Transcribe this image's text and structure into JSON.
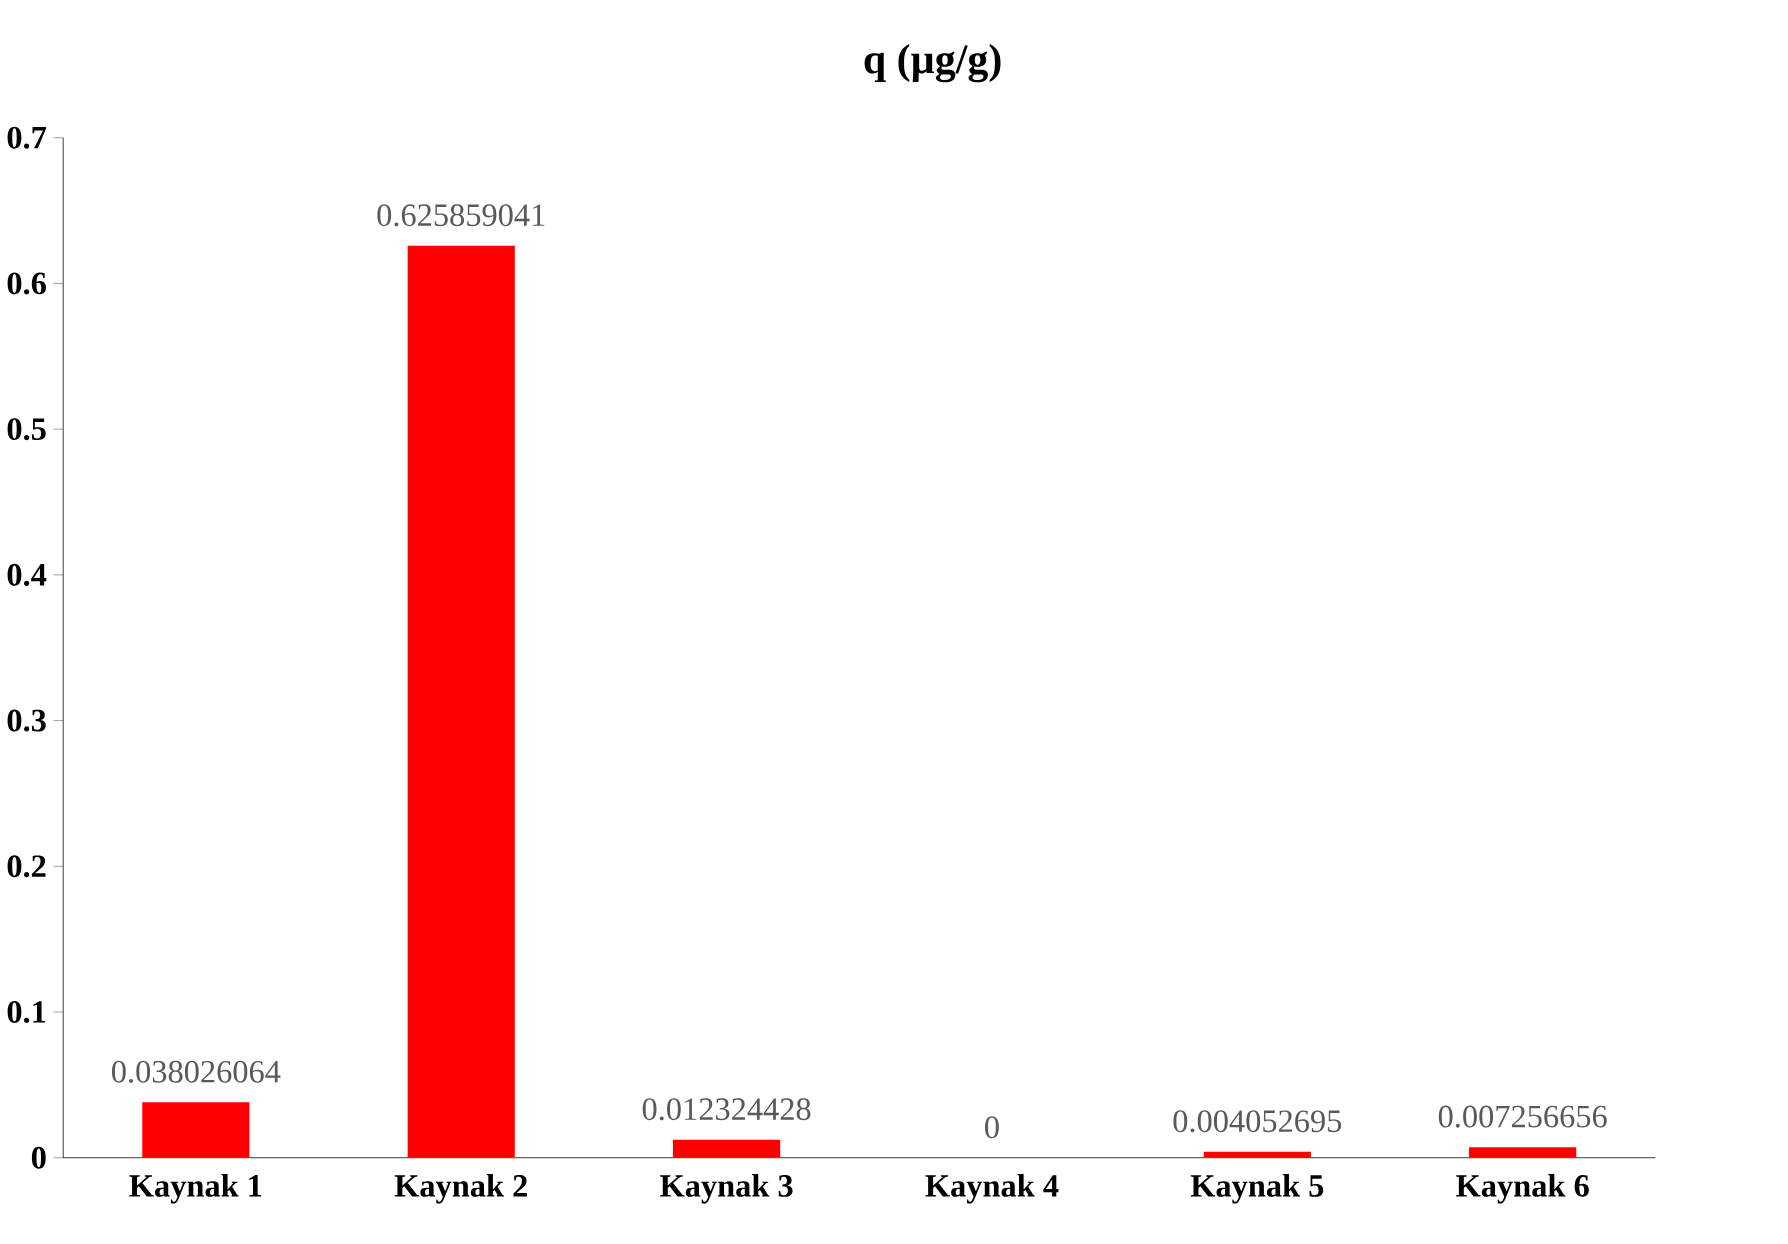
{
  "chart_data": {
    "type": "bar",
    "title": "q (µg/g)",
    "categories": [
      "Kaynak 1",
      "Kaynak 2",
      "Kaynak 3",
      "Kaynak 4",
      "Kaynak 5",
      "Kaynak 6"
    ],
    "values": [
      0.038026064,
      0.625859041,
      0.012324428,
      0,
      0.004052695,
      0.007256656
    ],
    "color": "#ff0000",
    "data_labels": true,
    "grid": false,
    "ylim": [
      0,
      0.7
    ],
    "yticks": [
      0,
      0.1,
      0.2,
      0.3,
      0.4,
      0.5,
      0.6,
      0.7
    ]
  }
}
